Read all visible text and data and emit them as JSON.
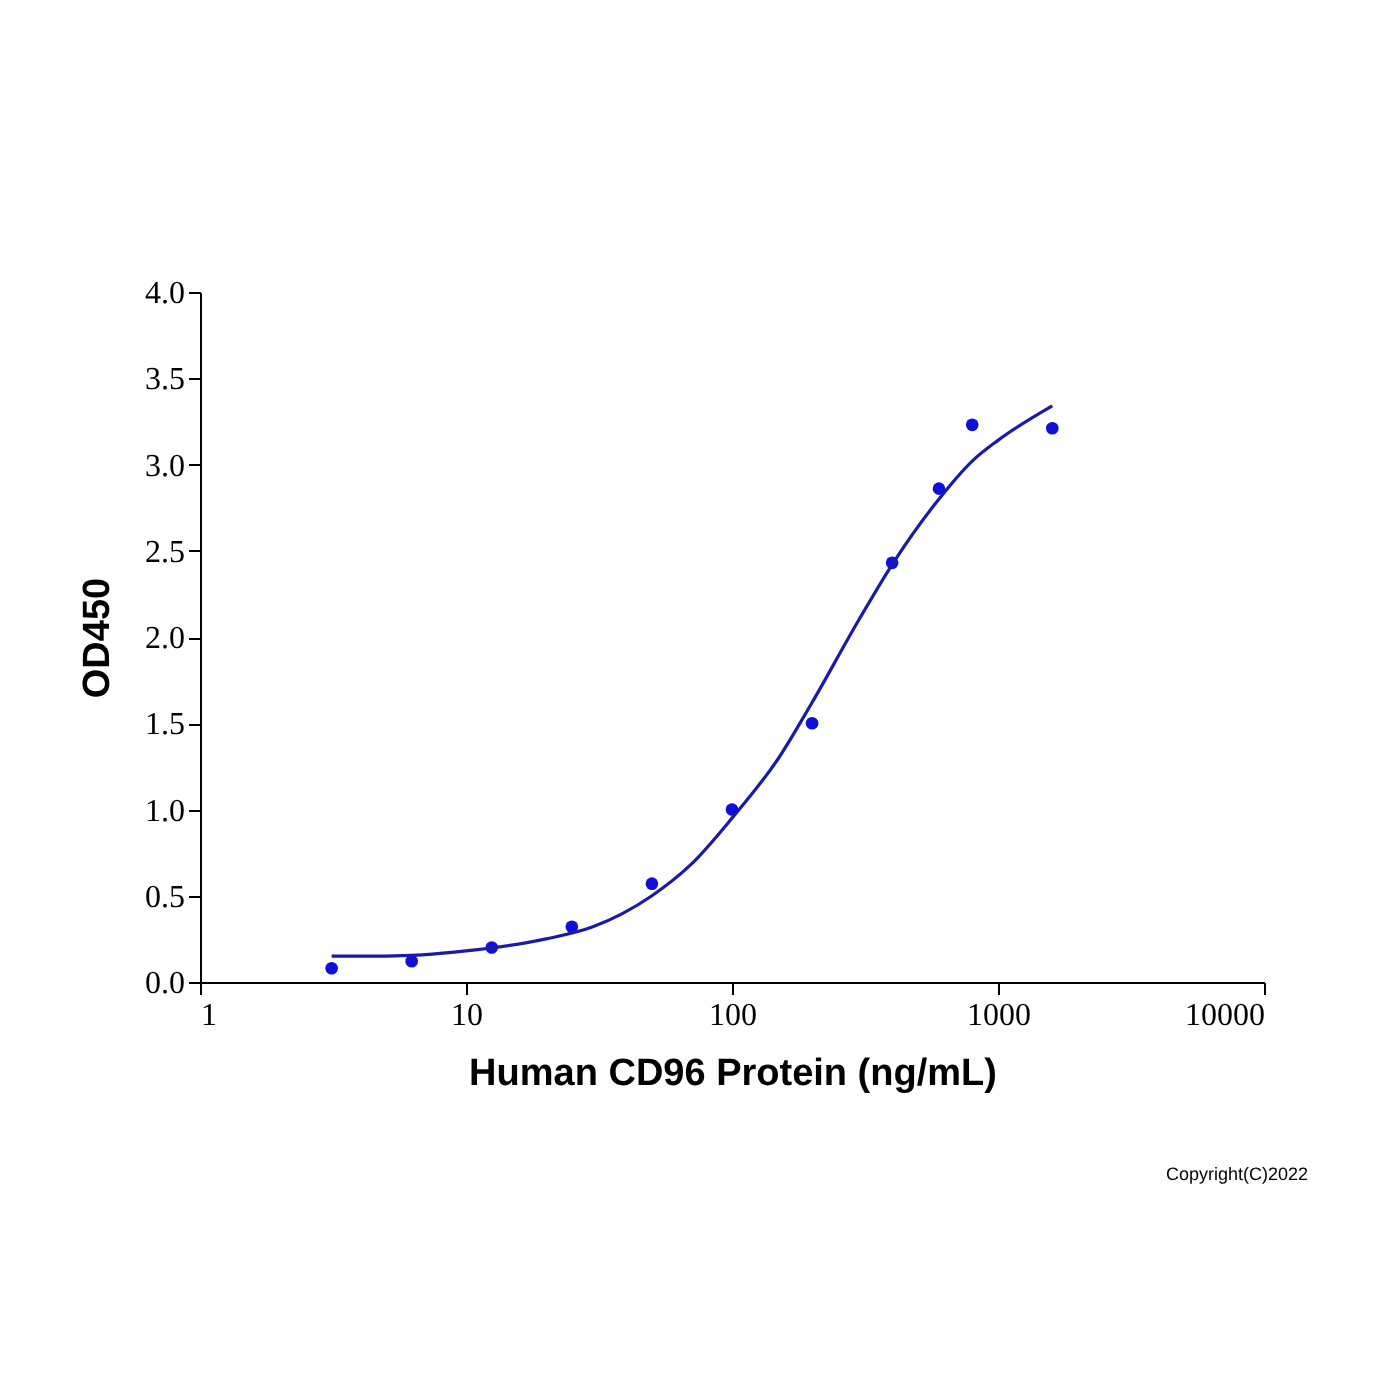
{
  "chart_data": {
    "type": "scatter",
    "xlabel": "Human CD96 Protein (ng/mL)",
    "ylabel": "OD450",
    "log": "x",
    "xlim": [
      1,
      10000
    ],
    "xticks": [
      1,
      10,
      100,
      1000,
      10000
    ],
    "ylim": [
      0,
      4
    ],
    "yticks": [
      {
        "value": 0,
        "label": "0.0"
      },
      0.5,
      {
        "value": 1,
        "label": "1.0"
      },
      1.5,
      {
        "value": 2,
        "label": "2.0"
      },
      2.5,
      {
        "value": 3,
        "label": "3.0"
      },
      3.5,
      {
        "value": 4,
        "label": "4.0"
      }
    ],
    "grid": false,
    "series": [
      {
        "marker": "circle",
        "color": "#1010d8",
        "x": [
          3.125,
          6.25,
          12.5,
          25,
          50,
          100,
          200,
          400,
          600,
          800,
          1600
        ],
        "values": [
          0.08,
          0.12,
          0.2,
          0.32,
          0.57,
          1.0,
          1.5,
          2.43,
          2.86,
          3.23,
          3.21
        ]
      },
      {
        "type": "line",
        "marker": "none",
        "line_style": "solid",
        "color": "#1a1aa8",
        "x": [
          3.125,
          5,
          10,
          20,
          30,
          50,
          70,
          100,
          150,
          200,
          300,
          400,
          600,
          800,
          1000,
          1600
        ],
        "values": [
          0.15,
          0.15,
          0.18,
          0.25,
          0.32,
          0.5,
          0.68,
          0.95,
          1.3,
          1.62,
          2.1,
          2.42,
          2.8,
          3.02,
          3.14,
          3.34
        ]
      }
    ],
    "annotations": [
      "Copyright(C)2022"
    ]
  }
}
